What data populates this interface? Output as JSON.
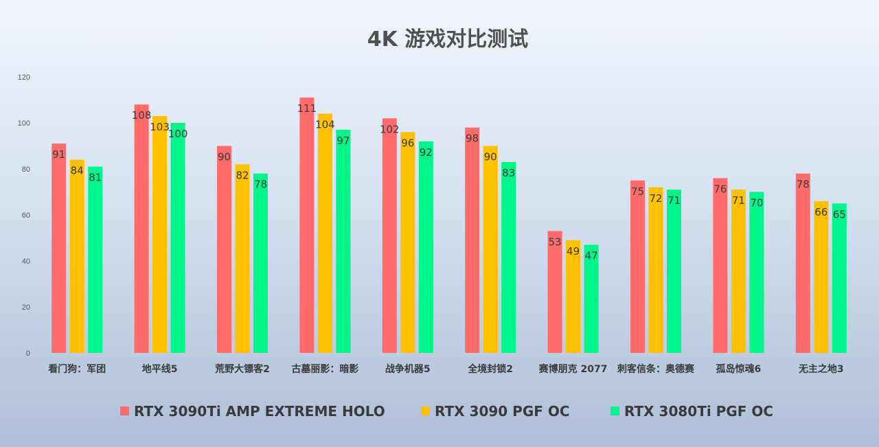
{
  "chart_data": {
    "type": "bar",
    "title": "4K 游戏对比测试",
    "xlabel": "",
    "ylabel": "",
    "ylim": [
      0,
      120
    ],
    "yticks": [
      0,
      20,
      40,
      60,
      80,
      100,
      120
    ],
    "grid": false,
    "legend_position": "bottom",
    "categories": [
      "看门狗：军团",
      "地平线5",
      "荒野大镖客2",
      "古墓丽影：暗影",
      "战争机器5",
      "全境封锁2",
      "赛博朋克 2077",
      "刺客信条：奥德赛",
      "孤岛惊魂6",
      "无主之地3"
    ],
    "series": [
      {
        "name": "RTX 3090Ti AMP EXTREME HOLO",
        "color": "#ff6b6b",
        "values": [
          91,
          108,
          90,
          111,
          102,
          98,
          53,
          75,
          76,
          78
        ]
      },
      {
        "name": "RTX 3090 PGF OC",
        "color": "#ffc000",
        "values": [
          84,
          103,
          82,
          104,
          96,
          90,
          49,
          72,
          71,
          66
        ]
      },
      {
        "name": "RTX 3080Ti PGF OC",
        "color": "#00f58a",
        "values": [
          81,
          100,
          78,
          97,
          92,
          83,
          47,
          71,
          70,
          65
        ]
      }
    ]
  }
}
